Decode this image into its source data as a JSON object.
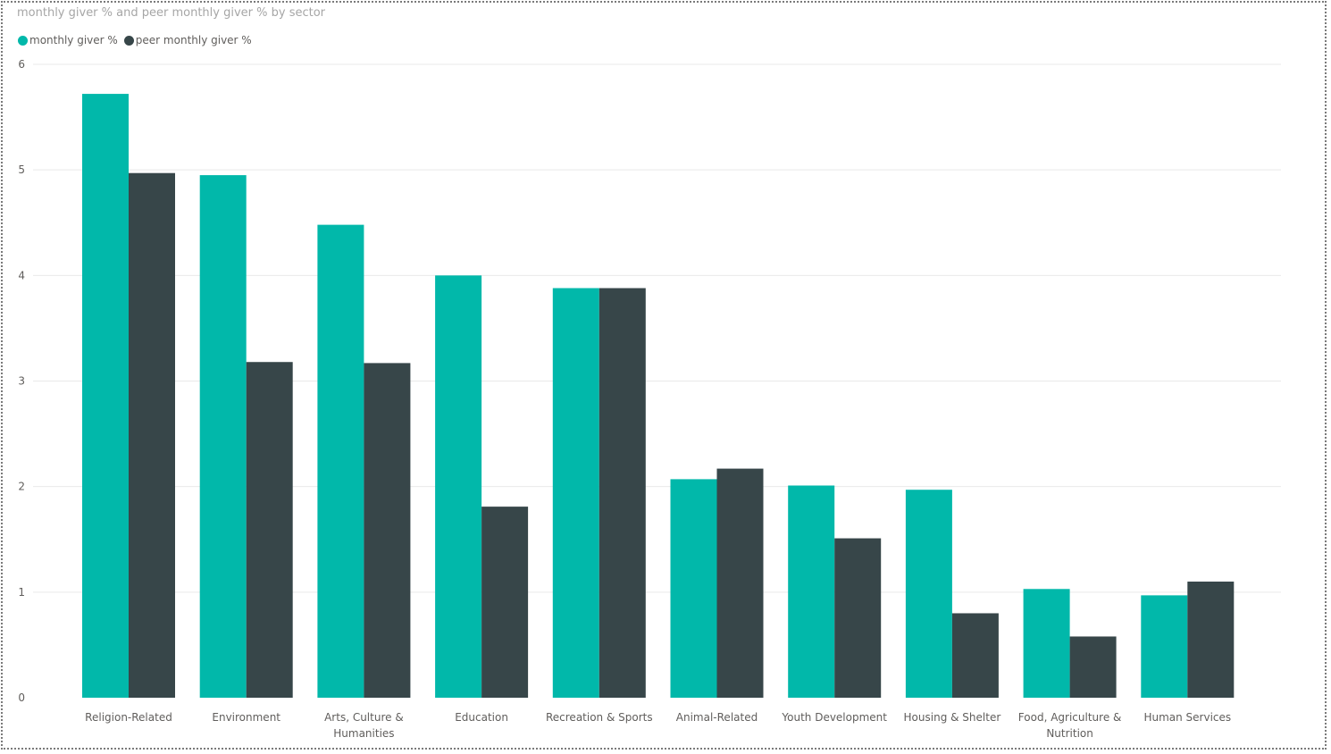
{
  "chart_data": {
    "type": "bar",
    "title": "monthly giver % and peer monthly giver % by sector",
    "xlabel": "",
    "ylabel": "",
    "ylim": [
      0,
      6
    ],
    "yticks": [
      0,
      1,
      2,
      3,
      4,
      5,
      6
    ],
    "grid": true,
    "legend_position": "top-left",
    "categories": [
      [
        "Religion-Related"
      ],
      [
        "Environment"
      ],
      [
        "Arts, Culture &",
        "Humanities"
      ],
      [
        "Education"
      ],
      [
        "Recreation & Sports"
      ],
      [
        "Animal-Related"
      ],
      [
        "Youth Development"
      ],
      [
        "Housing & Shelter"
      ],
      [
        "Food, Agriculture &",
        "Nutrition"
      ],
      [
        "Human Services"
      ]
    ],
    "series": [
      {
        "name": "monthly giver %",
        "color": "#01b8aa",
        "values": [
          5.72,
          4.95,
          4.48,
          4.0,
          3.88,
          2.07,
          2.01,
          1.97,
          1.03,
          0.97
        ]
      },
      {
        "name": "peer monthly giver %",
        "color": "#374649",
        "values": [
          4.97,
          3.18,
          3.17,
          1.81,
          3.88,
          2.17,
          1.51,
          0.8,
          0.58,
          1.1
        ]
      }
    ]
  }
}
